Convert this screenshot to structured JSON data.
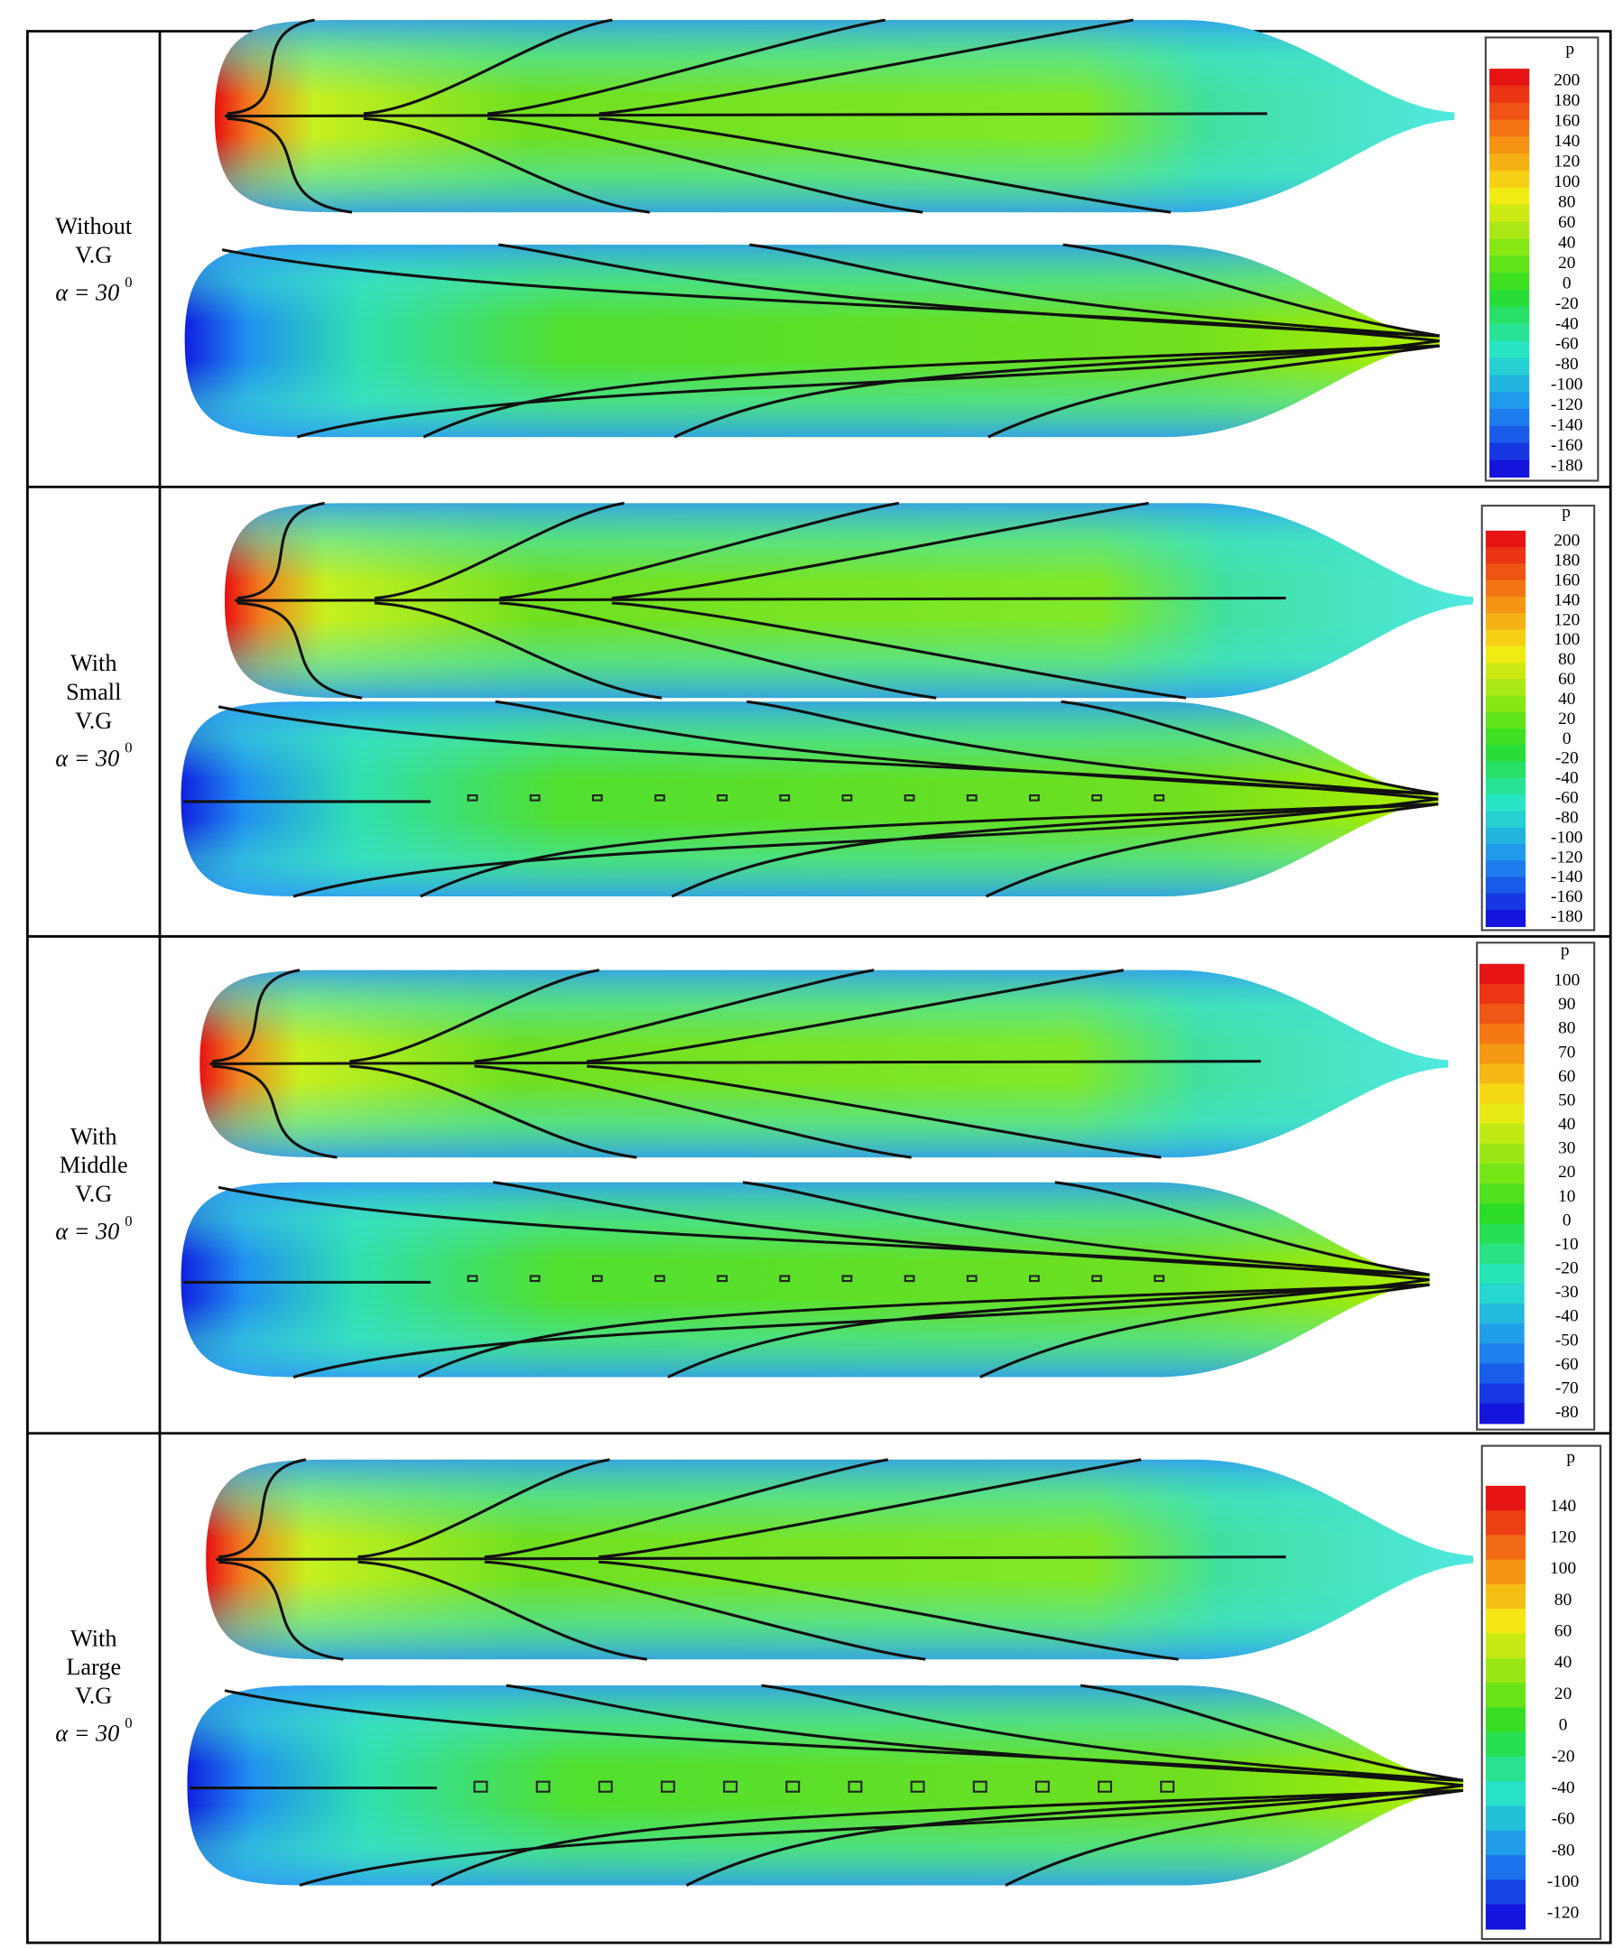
{
  "rows": [
    {
      "label": [
        "Without",
        "V.G"
      ],
      "angle": "α = 30",
      "angle_sup": "0",
      "legend_title": "p",
      "legend_ticks": [
        200,
        180,
        160,
        140,
        120,
        100,
        80,
        60,
        40,
        20,
        0,
        -20,
        -40,
        -60,
        -80,
        -100,
        -120,
        -140,
        -160,
        -180
      ]
    },
    {
      "label": [
        "With",
        "Small",
        "V.G"
      ],
      "angle": "α = 30",
      "angle_sup": "0",
      "legend_title": "p",
      "legend_ticks": [
        200,
        180,
        160,
        140,
        120,
        100,
        80,
        60,
        40,
        20,
        0,
        -20,
        -40,
        -60,
        -80,
        -100,
        -120,
        -140,
        -160,
        -180
      ]
    },
    {
      "label": [
        "With",
        "Middle",
        "V.G"
      ],
      "angle": "α = 30",
      "angle_sup": "0",
      "legend_title": "p",
      "legend_ticks": [
        100,
        90,
        80,
        70,
        60,
        50,
        40,
        30,
        20,
        10,
        0,
        -10,
        -20,
        -30,
        -40,
        -50,
        -60,
        -70,
        -80
      ]
    },
    {
      "label": [
        "With",
        "Large",
        "V.G"
      ],
      "angle": "α = 30",
      "angle_sup": "0",
      "legend_title": "p",
      "legend_ticks": [
        140,
        120,
        100,
        80,
        60,
        40,
        20,
        0,
        -20,
        -40,
        -60,
        -80,
        -100,
        -120
      ]
    }
  ]
}
